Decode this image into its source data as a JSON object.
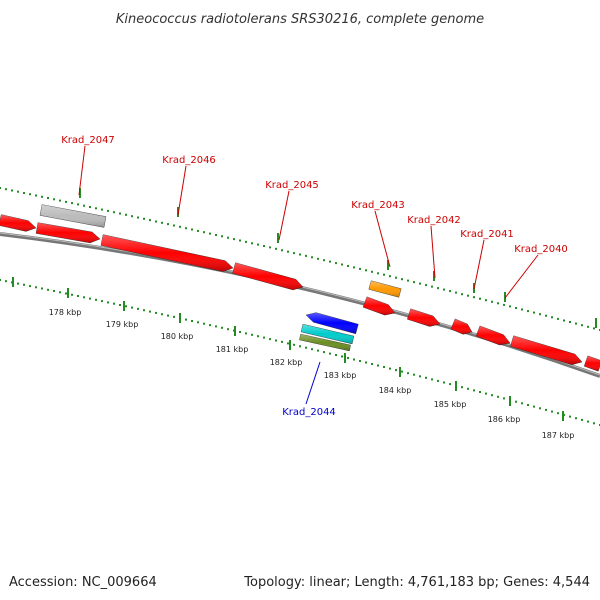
{
  "title": "Kineococcus radiotolerans SRS30216, complete genome",
  "accession_text": "Accession: NC_009664",
  "topology_text": "Topology: linear; Length: 4,761,183 bp; Genes: 4,544",
  "colors": {
    "forward_gene": "#ff0000",
    "reverse_gene": "#0000ff",
    "pseudo_gene": "#bbbbbb",
    "rna_feature": "#ff9900",
    "cyan_feature": "#00cccc",
    "olive_feature": "#6b8e23",
    "ruler": "#228b22",
    "backbone": "#777777",
    "forward_label": "#cc0000",
    "reverse_label": "#0000cc"
  },
  "ruler_ticks": [
    {
      "label": "178 kbp"
    },
    {
      "label": "179 kbp"
    },
    {
      "label": "180 kbp"
    },
    {
      "label": "181 kbp"
    },
    {
      "label": "182 kbp"
    },
    {
      "label": "183 kbp"
    },
    {
      "label": "184 kbp"
    },
    {
      "label": "185 kbp"
    },
    {
      "label": "186 kbp"
    },
    {
      "label": "187 kbp"
    }
  ],
  "gene_labels": [
    {
      "name": "Krad_2047",
      "strand": "forward"
    },
    {
      "name": "Krad_2046",
      "strand": "forward"
    },
    {
      "name": "Krad_2045",
      "strand": "forward"
    },
    {
      "name": "Krad_2043",
      "strand": "forward"
    },
    {
      "name": "Krad_2042",
      "strand": "forward"
    },
    {
      "name": "Krad_2041",
      "strand": "forward"
    },
    {
      "name": "Krad_2040",
      "strand": "forward"
    },
    {
      "name": "Krad_2044",
      "strand": "reverse"
    }
  ]
}
